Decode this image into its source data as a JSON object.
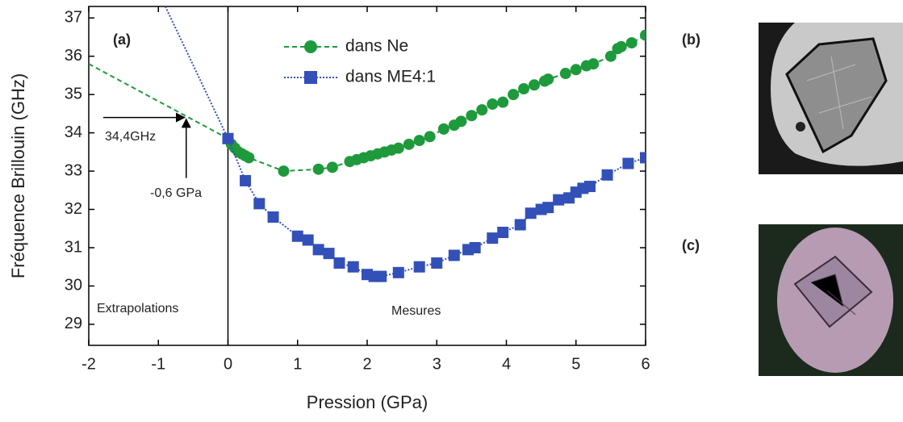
{
  "chart_data": {
    "type": "line",
    "xlabel": "Pression (GPa)",
    "ylabel": "Fréquence Brillouin (GHz)",
    "xlim": [
      -2,
      6
    ],
    "ylim": [
      28.45,
      37.3
    ],
    "xticks": [
      -2,
      -1,
      0,
      1,
      2,
      3,
      4,
      5,
      6
    ],
    "yticks": [
      29,
      30,
      31,
      32,
      33,
      34,
      35,
      36,
      37
    ],
    "series": [
      {
        "name": "dans Ne",
        "color": "#1e9a3c",
        "marker": "circle",
        "x": [
          0.0,
          0.05,
          0.1,
          0.15,
          0.2,
          0.25,
          0.3,
          0.8,
          1.3,
          1.5,
          1.75,
          1.85,
          1.95,
          2.05,
          2.15,
          2.25,
          2.35,
          2.45,
          2.6,
          2.75,
          2.9,
          3.1,
          3.25,
          3.35,
          3.5,
          3.65,
          3.8,
          3.95,
          4.1,
          4.25,
          4.4,
          4.55,
          4.6,
          4.85,
          5.0,
          5.15,
          5.25,
          5.5,
          5.6,
          5.65,
          5.8,
          6.0
        ],
        "values": [
          33.85,
          33.7,
          33.6,
          33.5,
          33.45,
          33.4,
          33.35,
          33.0,
          33.05,
          33.1,
          33.25,
          33.3,
          33.35,
          33.4,
          33.45,
          33.5,
          33.55,
          33.6,
          33.7,
          33.8,
          33.9,
          34.1,
          34.2,
          34.3,
          34.45,
          34.6,
          34.75,
          34.8,
          35.0,
          35.15,
          35.25,
          35.35,
          35.4,
          35.55,
          35.65,
          35.75,
          35.8,
          36.0,
          36.2,
          36.25,
          36.35,
          36.55
        ]
      },
      {
        "name": "dans ME4:1",
        "color": "#3350b8",
        "marker": "square",
        "x": [
          0.0,
          0.25,
          0.45,
          0.65,
          1.0,
          1.15,
          1.3,
          1.45,
          1.6,
          1.8,
          2.0,
          2.1,
          2.2,
          2.45,
          2.75,
          3.0,
          3.25,
          3.45,
          3.55,
          3.8,
          3.95,
          4.2,
          4.35,
          4.5,
          4.6,
          4.75,
          4.9,
          5.0,
          5.1,
          5.2,
          5.45,
          5.75,
          6.0
        ],
        "values": [
          33.85,
          32.75,
          32.15,
          31.8,
          31.3,
          31.2,
          30.95,
          30.85,
          30.6,
          30.5,
          30.3,
          30.25,
          30.25,
          30.35,
          30.5,
          30.6,
          30.8,
          30.95,
          31.0,
          31.25,
          31.4,
          31.6,
          31.9,
          32.0,
          32.05,
          32.25,
          32.3,
          32.45,
          32.55,
          32.6,
          32.9,
          33.2,
          33.35
        ]
      }
    ],
    "extrapolations": [
      {
        "color": "#1e9a3c",
        "dash": "dashed",
        "x": [
          -2,
          0
        ],
        "values": [
          35.8,
          33.85
        ]
      },
      {
        "color": "#3350b8",
        "dash": "dotted",
        "x": [
          -0.9,
          0
        ],
        "values": [
          37.3,
          33.85
        ]
      }
    ],
    "vline": 0,
    "reference_point": {
      "x": -0.6,
      "y": 34.4,
      "x_label": "-0,6 GPa",
      "y_label": "34,4GHz"
    },
    "panel_label": "(a)",
    "region_labels": [
      "Extrapolations",
      "Mesures"
    ],
    "images": [
      {
        "label": "(b)"
      },
      {
        "label": "(c)"
      }
    ]
  }
}
